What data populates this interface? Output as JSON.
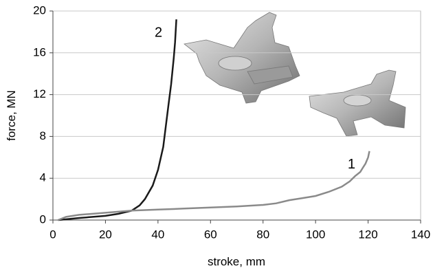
{
  "chart_data": {
    "type": "line",
    "x_label": "stroke, mm",
    "y_label": "force, MN",
    "xlim": [
      0,
      140
    ],
    "xticks": [
      0,
      20,
      40,
      60,
      80,
      100,
      120,
      140
    ],
    "ylim": [
      0,
      20
    ],
    "yticks": [
      0,
      4,
      8,
      12,
      16,
      20
    ],
    "grid": true,
    "series": [
      {
        "name": "2",
        "color": "#1a1a1a",
        "x": [
          2,
          10,
          20,
          25,
          30,
          33,
          35,
          38,
          40,
          42,
          43,
          44,
          45,
          46,
          46.5,
          47
        ],
        "values": [
          0,
          0.2,
          0.4,
          0.6,
          0.9,
          1.4,
          2,
          3.3,
          4.8,
          7,
          9,
          11,
          13,
          15.5,
          17,
          19.2
        ]
      },
      {
        "name": "1",
        "color": "#8a8a8a",
        "x": [
          2,
          5,
          10,
          20,
          30,
          40,
          50,
          60,
          70,
          80,
          85,
          90,
          95,
          100,
          105,
          110,
          113,
          115,
          117,
          118,
          119,
          120,
          120.5
        ],
        "values": [
          0,
          0.3,
          0.5,
          0.7,
          0.9,
          1.0,
          1.1,
          1.2,
          1.3,
          1.45,
          1.6,
          1.9,
          2.1,
          2.3,
          2.7,
          3.2,
          3.7,
          4.2,
          4.6,
          5.0,
          5.4,
          6.0,
          6.6
        ]
      }
    ]
  }
}
